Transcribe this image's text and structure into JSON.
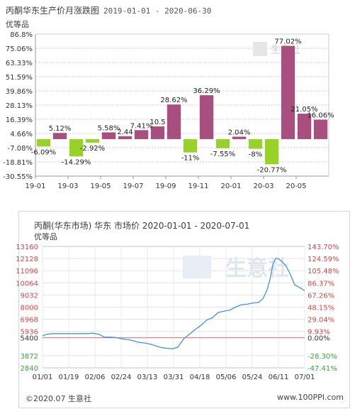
{
  "chart1": {
    "title": "丙酮华东生产价月涨跌图",
    "date_range": "2019-01-01 - 2020-06-30",
    "subtitle": "优等品",
    "watermark": "生意社",
    "colors": {
      "positive": "#a84f7f",
      "negative": "#98d12a",
      "grid": "#c8c8c8"
    }
  },
  "chart2": {
    "title": "丙酮(华东市场) 华东 市场价 2020-01-01 - 2020-07-01",
    "subtitle": "优等品",
    "watermark": "生意社",
    "colors": {
      "line": "#4a90d9",
      "left_axis_up": "#d44",
      "left_axis_down": "#3a3",
      "baseline": "#e07070"
    }
  },
  "footer": {
    "left": "©2020.07 生意社",
    "right": "www.100PPI.com"
  },
  "chart_data": [
    {
      "type": "bar",
      "title": "丙酮华东生产价月涨跌图",
      "subtitle": "优等品",
      "categories": [
        "2019-01",
        "2019-02",
        "2019-03",
        "2019-04",
        "2019-05",
        "2019-06",
        "2019-07",
        "2019-08",
        "2019-09",
        "2019-10",
        "2019-11",
        "2019-12",
        "2020-01",
        "2020-02",
        "2020-03",
        "2020-04",
        "2020-05",
        "2020-06"
      ],
      "values": [
        -6.09,
        5.12,
        -14.29,
        -2.92,
        5.58,
        2.44,
        7.41,
        10.5,
        28.62,
        -11,
        36.29,
        -7.55,
        2.04,
        -8,
        -20.77,
        77.02,
        21.05,
        16.06
      ],
      "value_labels": [
        "-6.09%",
        "5.12%",
        "-14.29%",
        "-2.92%",
        "5.58%",
        "2.44",
        "7.41%",
        "10.5",
        "28.62%",
        "-11%",
        "36.29%",
        "-7.55%",
        "2.04%",
        "-8%",
        "-20.77%",
        "77.02%",
        "21.05%",
        "16.06%"
      ],
      "x_tick_labels": [
        "19-01",
        "19-03",
        "19-05",
        "19-07",
        "19-09",
        "19-11",
        "20-01",
        "20-03",
        "20-05"
      ],
      "y_tick_labels": [
        "86.8%",
        "75.06%",
        "63.33%",
        "51.59%",
        "39.86%",
        "28.13%",
        "16.39%",
        "4.66%",
        "-7.08%",
        "-18.81%",
        "-30.55%"
      ],
      "ylim": [
        -30.55,
        86.8
      ],
      "grid": true
    },
    {
      "type": "line",
      "title": "丙酮(华东市场) 华东 市场价 2020-01-01 - 2020-07-01",
      "subtitle": "优等品",
      "x_tick_labels": [
        "01/01",
        "01/19",
        "02/06",
        "02/24",
        "03/13",
        "03/31",
        "04/18",
        "05/06",
        "05/24",
        "06/11",
        "07/01"
      ],
      "y_left_tick_labels": [
        "13160",
        "12128",
        "11096",
        "10064",
        "9032",
        "8000",
        "6968",
        "5936",
        "5400",
        "3872",
        "2840"
      ],
      "y_right_tick_labels": [
        "143.70%",
        "124.59%",
        "105.48%",
        "86.37%",
        "67.26%",
        "48.15%",
        "29.04%",
        "9.93%",
        "0.00%",
        "-28.30%",
        "-47.41%"
      ],
      "ylim": [
        2840,
        13160
      ],
      "baseline": 5400,
      "series": [
        {
          "x": [
            "01-01",
            "01-04",
            "01-08",
            "01-12",
            "01-16",
            "01-20",
            "01-24",
            "01-28",
            "02-01",
            "02-05",
            "02-09",
            "02-13",
            "02-17",
            "02-21",
            "02-25",
            "02-29",
            "03-04",
            "03-08",
            "03-12",
            "03-16",
            "03-20",
            "03-24",
            "03-28",
            "03-31",
            "04-04",
            "04-08",
            "04-12",
            "04-16",
            "04-20",
            "04-24",
            "04-28",
            "05-02",
            "05-06",
            "05-10",
            "05-14",
            "05-18",
            "05-22",
            "05-26",
            "05-30",
            "06-02",
            "06-05",
            "06-07",
            "06-09",
            "06-11",
            "06-13",
            "06-15",
            "06-18",
            "06-21",
            "06-24",
            "06-27",
            "07-01"
          ],
          "y": [
            5560,
            5700,
            5750,
            5750,
            5750,
            5750,
            5750,
            5750,
            5750,
            5780,
            5700,
            5450,
            5450,
            5420,
            5300,
            5250,
            5150,
            5000,
            4950,
            4850,
            4700,
            4550,
            4500,
            4450,
            4600,
            5300,
            5700,
            6100,
            6450,
            6900,
            7100,
            7550,
            7650,
            7750,
            8000,
            8200,
            8250,
            8350,
            8400,
            8700,
            9500,
            10400,
            11700,
            12150,
            12100,
            11900,
            11500,
            10800,
            9900,
            9700,
            9400
          ]
        }
      ]
    }
  ]
}
